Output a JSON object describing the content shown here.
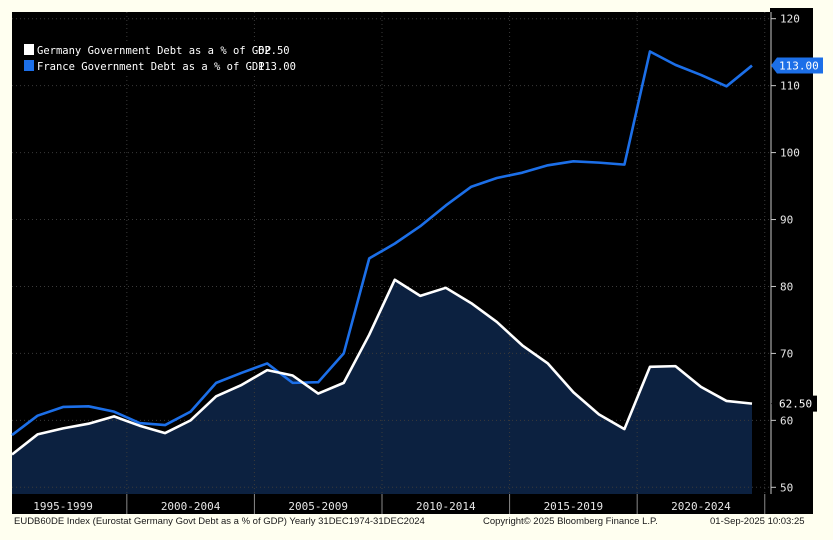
{
  "chart_data": {
    "type": "area",
    "x": [
      1995,
      1996,
      1997,
      1998,
      1999,
      2000,
      2001,
      2002,
      2003,
      2004,
      2005,
      2006,
      2007,
      2008,
      2009,
      2010,
      2011,
      2012,
      2013,
      2014,
      2015,
      2016,
      2017,
      2018,
      2019,
      2020,
      2021,
      2022,
      2023,
      2024
    ],
    "series": [
      {
        "name": "Germany Government Debt as a % of GDP",
        "last_value_label": "62.50",
        "color": "#ffffff",
        "fill": "#0c2140",
        "values": [
          54.9,
          57.9,
          58.8,
          59.5,
          60.6,
          59.2,
          58.1,
          60.0,
          63.6,
          65.3,
          67.5,
          66.7,
          64.0,
          65.6,
          72.8,
          81.0,
          78.6,
          79.8,
          77.5,
          74.7,
          71.2,
          68.5,
          64.2,
          60.9,
          58.7,
          68.0,
          68.1,
          65.0,
          62.9,
          62.5
        ]
      },
      {
        "name": "France Government Debt as a % of GDP",
        "last_value_label": "113.00",
        "color": "#1c6fe8",
        "values": [
          57.8,
          60.7,
          62.0,
          62.1,
          61.3,
          59.6,
          59.3,
          61.3,
          65.6,
          67.1,
          68.5,
          65.6,
          65.7,
          70.0,
          84.2,
          86.4,
          89.0,
          92.1,
          94.9,
          96.2,
          97.0,
          98.1,
          98.7,
          98.5,
          98.2,
          115.1,
          113.1,
          111.6,
          109.9,
          113.0
        ]
      }
    ],
    "x_tick_labels": [
      "1995-1999",
      "2000-2004",
      "2005-2009",
      "2010-2014",
      "2015-2019",
      "2020-2024"
    ],
    "y_tick_labels": [
      "50",
      "60",
      "70",
      "80",
      "90",
      "100",
      "110",
      "120"
    ],
    "ylim": [
      49,
      121
    ],
    "title": "",
    "legend_position": "top-left",
    "background": "#000000"
  },
  "footer": {
    "left": "EUDB60DE Index (Eurostat Germany Govt Debt as a % of GDP)  Yearly 31DEC1974-31DEC2024",
    "center": "Copyright© 2025 Bloomberg Finance L.P.",
    "right": "01-Sep-2025 10:03:25"
  }
}
